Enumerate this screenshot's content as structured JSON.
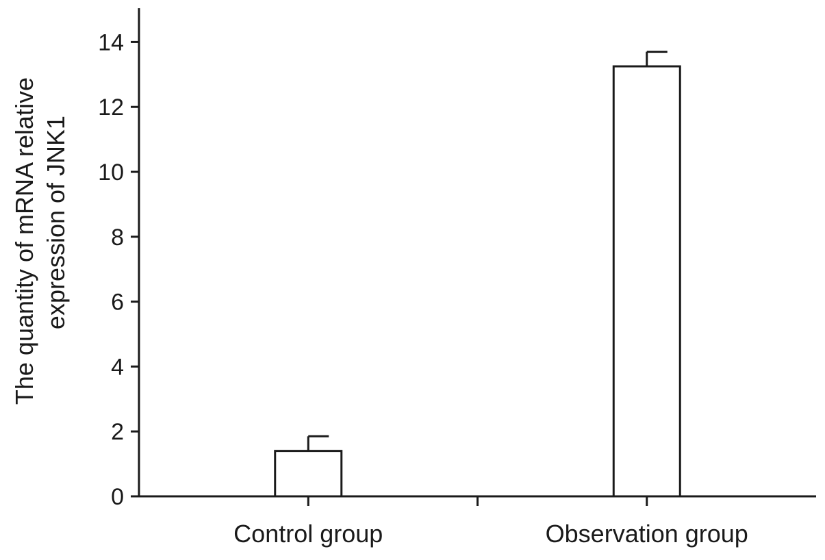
{
  "chart_data": {
    "type": "bar",
    "categories": [
      "Control group",
      "Observation group"
    ],
    "values": [
      1.4,
      13.25
    ],
    "error_bars": [
      0.45,
      0.45
    ],
    "title": "",
    "xlabel": "",
    "ylabel": [
      "The quantity of mRNA relative",
      "expression of JNK1"
    ],
    "ylim": [
      0,
      14.5
    ],
    "yticks": [
      0,
      2,
      4,
      6,
      8,
      10,
      12,
      14
    ],
    "grid": false,
    "legend": "none",
    "colors": {
      "bar_fill": "#ffffff",
      "bar_stroke": "#1a1a1a",
      "axis": "#1a1a1a"
    }
  }
}
